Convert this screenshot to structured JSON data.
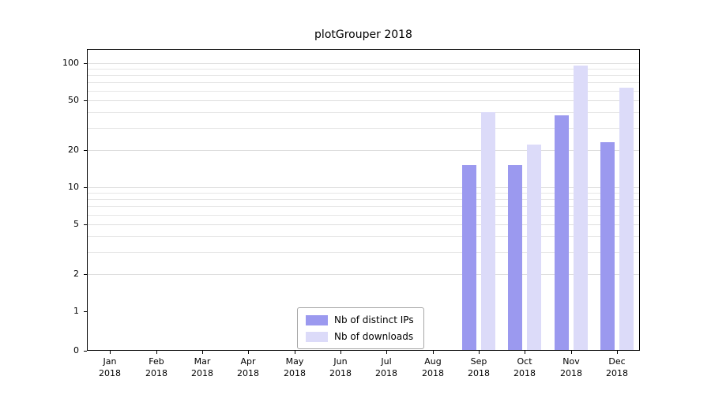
{
  "title": "plotGrouper 2018",
  "chart_data": {
    "type": "bar",
    "title": "plotGrouper 2018",
    "scale": "symlog",
    "grid": true,
    "legend_position": "bottom-center",
    "year_label": "2018",
    "categories": [
      "Jan",
      "Feb",
      "Mar",
      "Apr",
      "May",
      "Jun",
      "Jul",
      "Aug",
      "Sep",
      "Oct",
      "Nov",
      "Dec"
    ],
    "series": [
      {
        "name": "Nb of distinct IPs",
        "color": "#9b99ef",
        "values": [
          0,
          0,
          0,
          0,
          0,
          0,
          0,
          0,
          15,
          15,
          38,
          23
        ]
      },
      {
        "name": "Nb of downloads",
        "color": "#dcdbf9",
        "values": [
          0,
          0,
          0,
          0,
          0,
          0,
          0,
          0,
          40,
          22,
          95,
          63
        ]
      }
    ],
    "yticks": [
      0,
      1,
      2,
      5,
      10,
      20,
      50,
      100
    ],
    "minor_gridlines": [
      2,
      3,
      4,
      5,
      6,
      7,
      8,
      9,
      10,
      20,
      30,
      40,
      50,
      60,
      70,
      80,
      90,
      100
    ],
    "ylim": [
      0,
      130
    ]
  }
}
